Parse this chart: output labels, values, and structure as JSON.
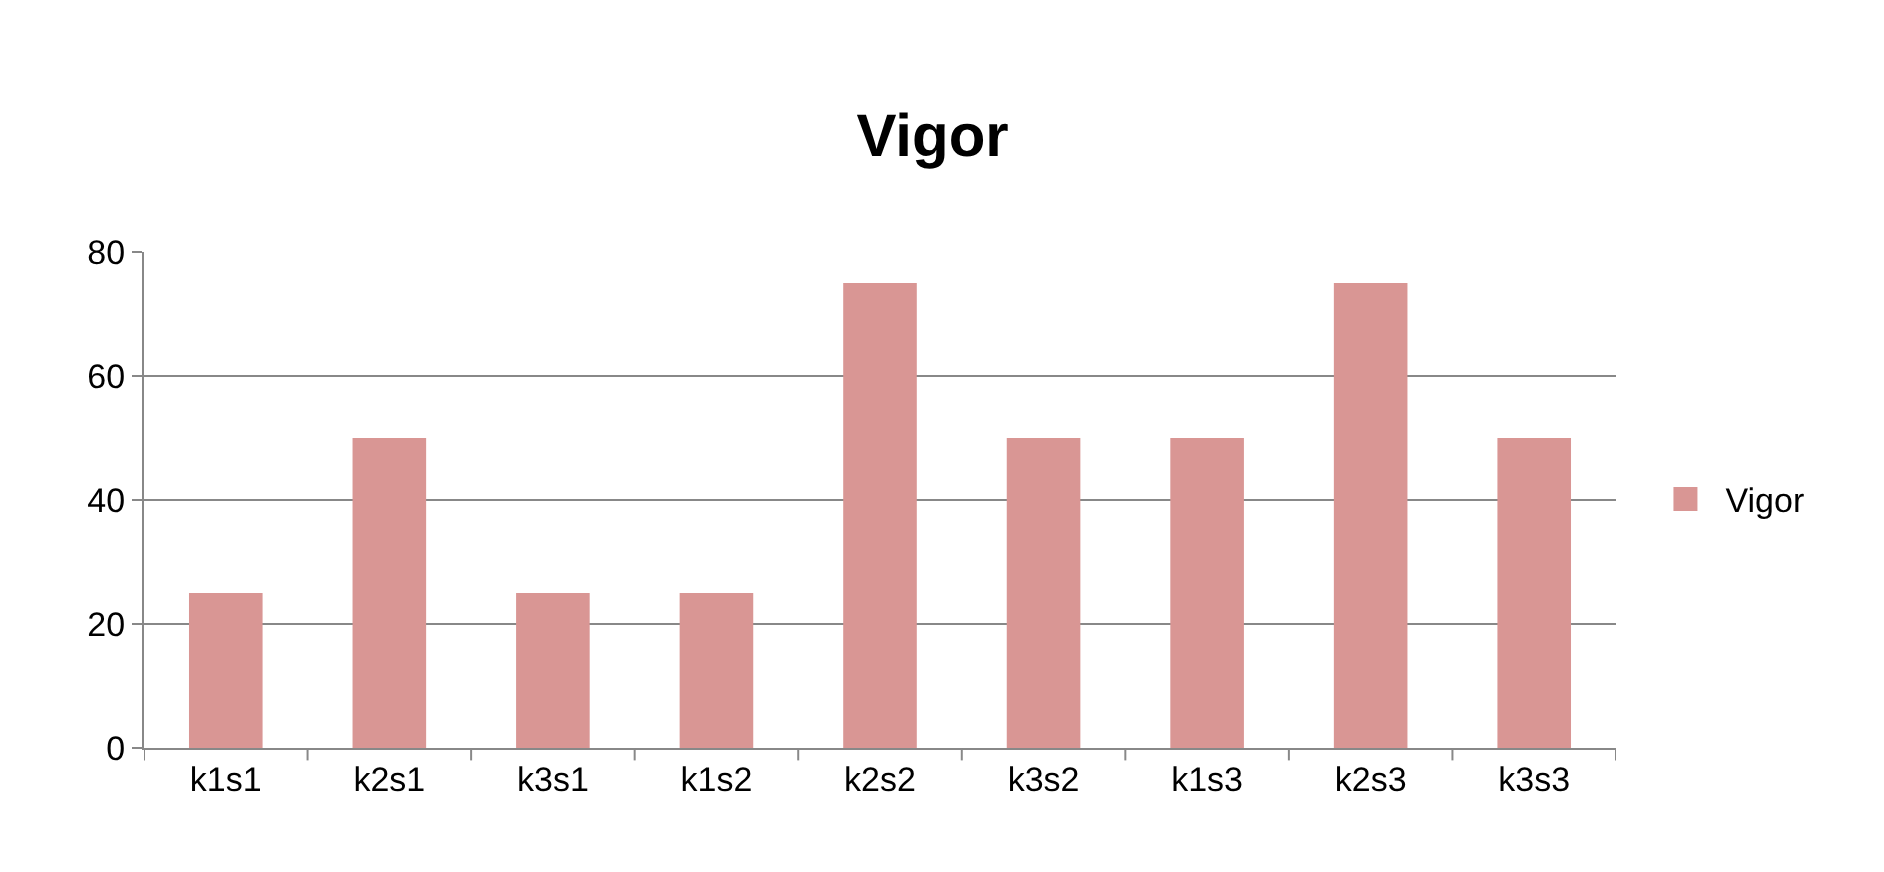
{
  "chart_data": {
    "type": "bar",
    "title": "Vigor",
    "categories": [
      "k1s1",
      "k2s1",
      "k3s1",
      "k1s2",
      "k2s2",
      "k3s2",
      "k1s3",
      "k2s3",
      "k3s3"
    ],
    "series": [
      {
        "name": "Vigor",
        "color": "#d99694",
        "values": [
          25,
          50,
          25,
          25,
          75,
          50,
          50,
          75,
          50
        ]
      }
    ],
    "ylim": [
      0,
      80
    ],
    "yticks": [
      0,
      20,
      40,
      60,
      80
    ],
    "grid": "y",
    "legend": "right"
  }
}
